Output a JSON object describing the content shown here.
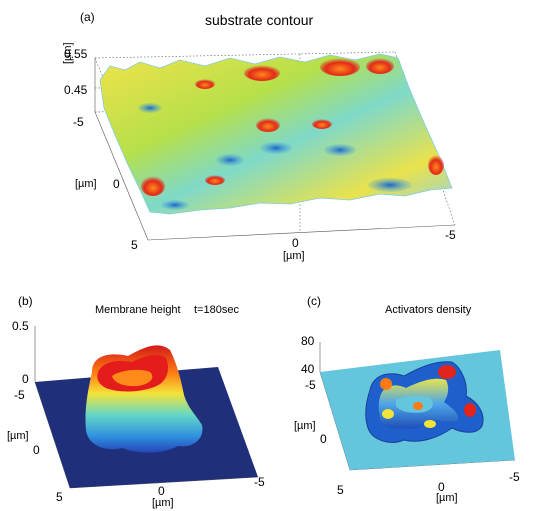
{
  "panel_a": {
    "tag": "(a)",
    "title": "substrate contour",
    "z_ticks": [
      "0.55",
      "0.45"
    ],
    "z_unit": "[µm]",
    "y_ticks": [
      "-5",
      "0",
      "5"
    ],
    "y_unit": "[µm]",
    "x_ticks": [
      "0",
      "-5"
    ],
    "x_unit": "[µm]"
  },
  "panel_b": {
    "tag": "(b)",
    "title": "Membrane height",
    "time": "t=180sec",
    "z_ticks": [
      "0.5",
      "0"
    ],
    "y_ticks": [
      "-5",
      "0",
      "5"
    ],
    "y_unit": "[µm]",
    "x_ticks": [
      "0",
      "-5"
    ],
    "x_unit": "[µm]"
  },
  "panel_c": {
    "tag": "(c)",
    "title": "Activators density",
    "z_ticks": [
      "80",
      "40"
    ],
    "y_ticks": [
      "-5",
      "0",
      "5"
    ],
    "y_unit": "[µm]",
    "x_ticks": [
      "0",
      "-5"
    ],
    "x_unit": "[µm]"
  },
  "colors": {
    "jet_low": "#2a7fd6",
    "jet_mid": "#e8e34a",
    "jet_high": "#d61e1e",
    "plane_b": "#1f2f7a",
    "plane_c": "#63c6dd"
  }
}
